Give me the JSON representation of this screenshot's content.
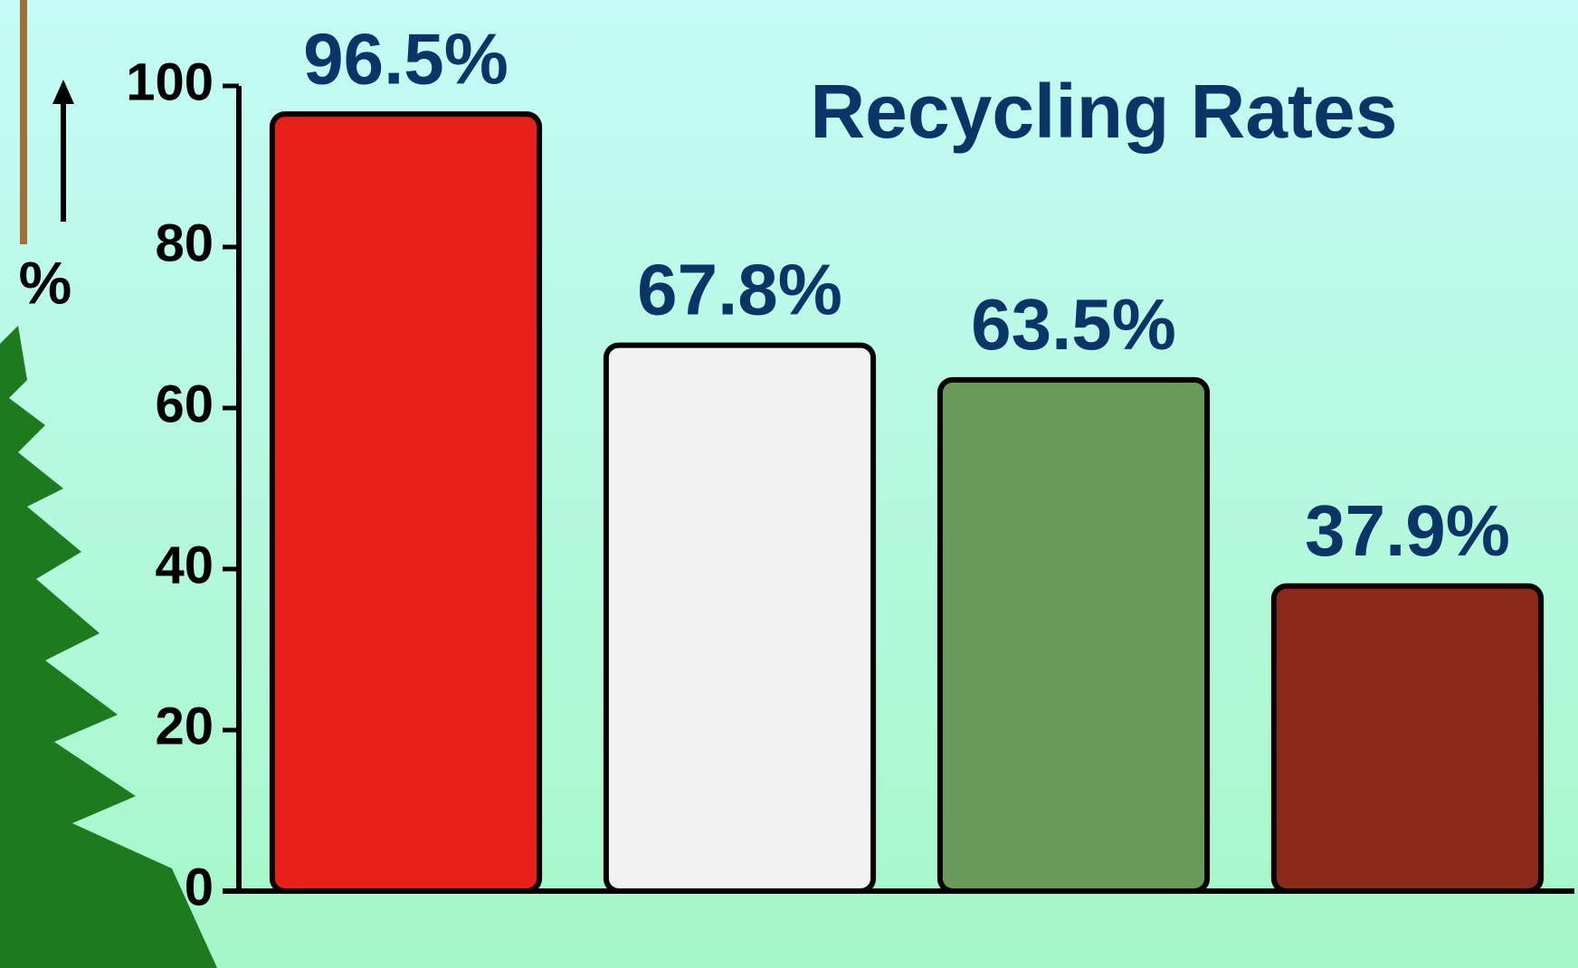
{
  "chart_data": {
    "type": "bar",
    "title": "Recycling Rates",
    "y_label": "%",
    "categories": [
      null,
      null,
      null,
      null
    ],
    "values": [
      96.5,
      67.8,
      63.5,
      37.9
    ],
    "value_labels": [
      "96.5%",
      "67.8%",
      "63.5%",
      "37.9%"
    ],
    "colors": [
      "#e8201a",
      "#f2f2f2",
      "#6a9a5a",
      "#8b2a1a"
    ],
    "ylim": [
      0,
      100
    ],
    "yticks": [
      0,
      20,
      40,
      60,
      80,
      100
    ],
    "grid": false
  }
}
